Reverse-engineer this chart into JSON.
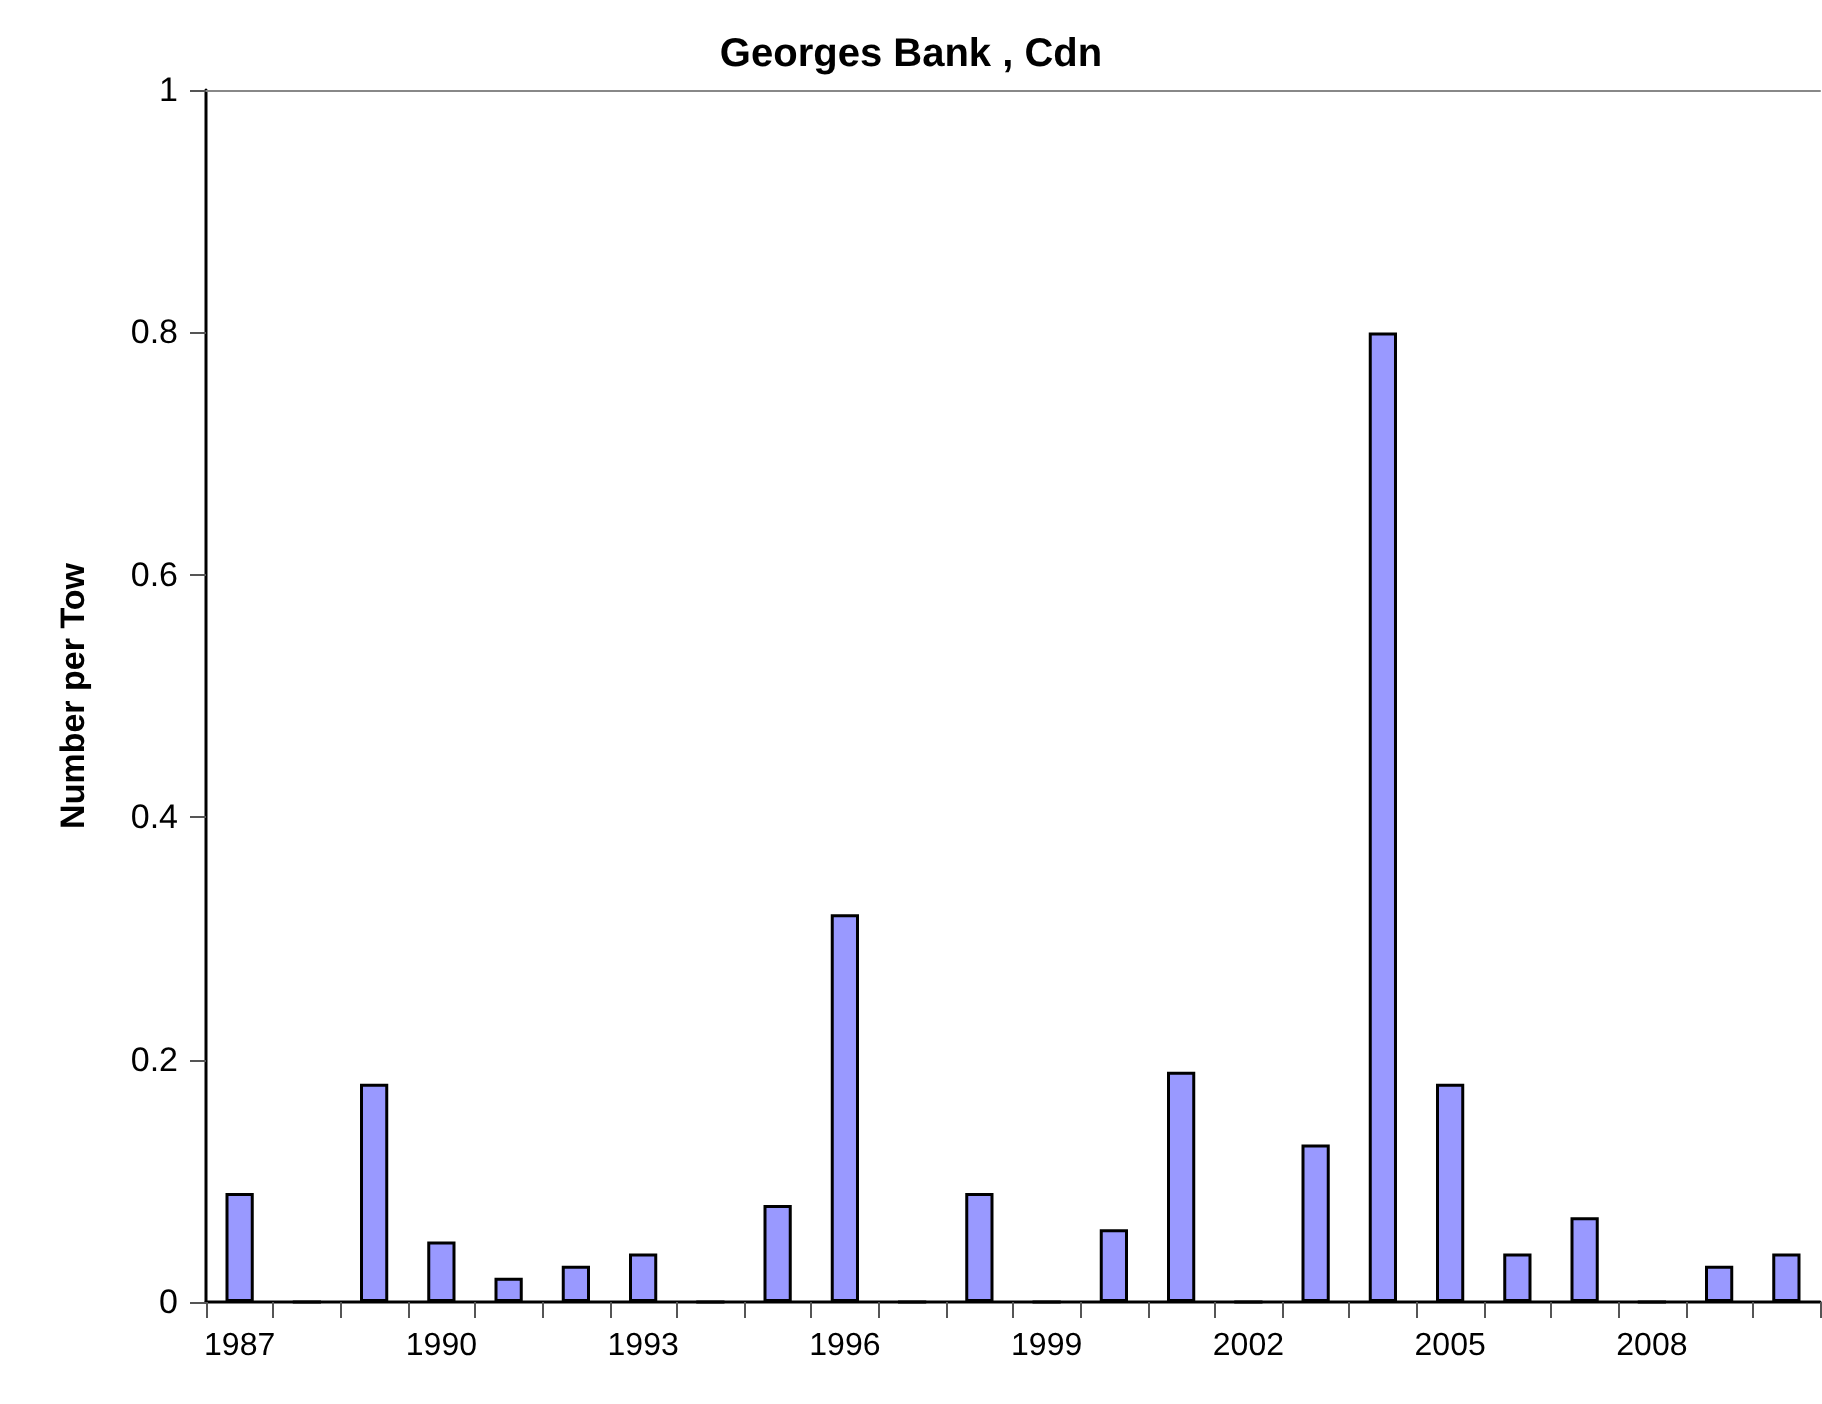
{
  "chart_data": {
    "type": "bar",
    "title": "Georges Bank , Cdn",
    "ylabel": "Number per Tow",
    "categories": [
      "1987",
      null,
      null,
      "1990",
      null,
      null,
      "1993",
      null,
      null,
      "1996",
      null,
      null,
      "1999",
      null,
      null,
      "2002",
      null,
      null,
      "2005",
      null,
      null,
      "2008",
      null,
      null
    ],
    "values": [
      0.09,
      0,
      0.18,
      0.05,
      0.02,
      0.03,
      0.04,
      0,
      0.08,
      0.32,
      0,
      0.09,
      0,
      0.06,
      0.19,
      0,
      0.13,
      0.8,
      0.18,
      0.04,
      0.07,
      0,
      0.03,
      0.04
    ],
    "color": "#9999ff",
    "ylim": [
      0,
      1
    ],
    "yticks": [
      0,
      0.2,
      0.4,
      0.6,
      0.8,
      1
    ],
    "grid": false
  }
}
